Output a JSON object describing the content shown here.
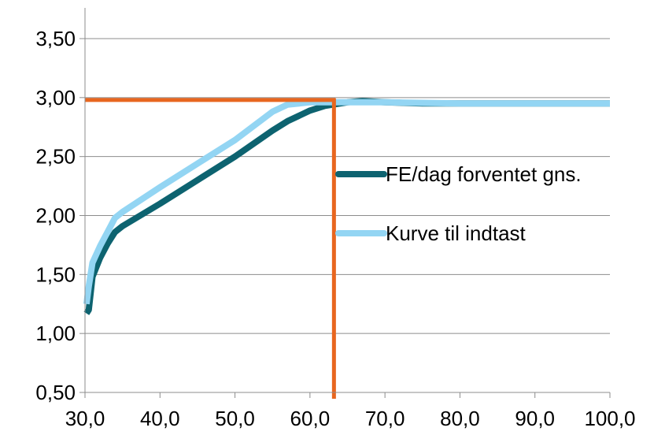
{
  "chart_data": {
    "type": "line",
    "title": "",
    "xlabel": "",
    "ylabel": "",
    "xlim": [
      30,
      100
    ],
    "ylim": [
      0.5,
      3.5
    ],
    "x_ticks": [
      "30,0",
      "40,0",
      "50,0",
      "60,0",
      "70,0",
      "80,0",
      "90,0",
      "100,0"
    ],
    "y_ticks": [
      "0,50",
      "1,00",
      "1,50",
      "2,00",
      "2,50",
      "3,00",
      "3,50"
    ],
    "grid": "horizontal",
    "legend_position": "right",
    "series": [
      {
        "name": "FE/dag forventet gns.",
        "color": "#0d6370",
        "points": [
          [
            30.2,
            1.17
          ],
          [
            30.5,
            1.2
          ],
          [
            31,
            1.48
          ],
          [
            32,
            1.64
          ],
          [
            33,
            1.76
          ],
          [
            34,
            1.86
          ],
          [
            35,
            1.91
          ],
          [
            40,
            2.1
          ],
          [
            45,
            2.3
          ],
          [
            50,
            2.5
          ],
          [
            55,
            2.72
          ],
          [
            57,
            2.8
          ],
          [
            60,
            2.89
          ],
          [
            62,
            2.93
          ],
          [
            65,
            2.96
          ],
          [
            67,
            2.97
          ],
          [
            70,
            2.96
          ],
          [
            75,
            2.95
          ],
          [
            80,
            2.95
          ],
          [
            90,
            2.95
          ],
          [
            100,
            2.95
          ]
        ]
      },
      {
        "name": "Kurve til indtast",
        "color": "#93d5f3",
        "points": [
          [
            30.2,
            1.25
          ],
          [
            30.5,
            1.4
          ],
          [
            31,
            1.6
          ],
          [
            32,
            1.74
          ],
          [
            33,
            1.86
          ],
          [
            34,
            1.98
          ],
          [
            35,
            2.03
          ],
          [
            40,
            2.24
          ],
          [
            45,
            2.44
          ],
          [
            50,
            2.64
          ],
          [
            55,
            2.88
          ],
          [
            57,
            2.94
          ],
          [
            60,
            2.96
          ],
          [
            65,
            2.96
          ],
          [
            70,
            2.96
          ],
          [
            80,
            2.95
          ],
          [
            90,
            2.95
          ],
          [
            100,
            2.95
          ]
        ]
      }
    ],
    "reference_lines": {
      "color": "#e8661f",
      "horizontal_y": 2.98,
      "horizontal_x_range": [
        30,
        63.2
      ],
      "vertical_x": 63.2,
      "vertical_y_range": [
        0.5,
        2.98
      ]
    }
  }
}
